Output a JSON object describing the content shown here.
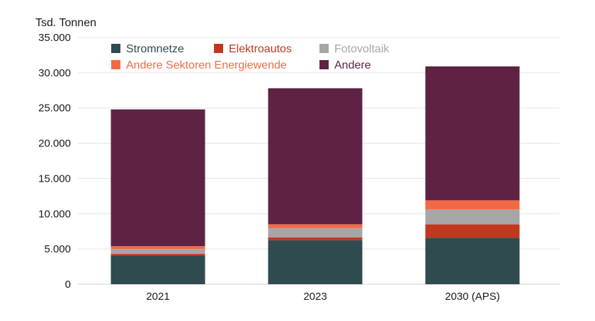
{
  "chart_data": {
    "type": "bar",
    "stacked": true,
    "ylabel": "Tsd. Tonnen",
    "xlabel": "",
    "categories": [
      "2021",
      "2023",
      "2030 (APS)"
    ],
    "ylim": [
      0,
      35000
    ],
    "yticks": [
      0,
      5000,
      10000,
      15000,
      20000,
      25000,
      30000,
      35000
    ],
    "ytick_labels": [
      "0",
      "5.000",
      "10.000",
      "15.000",
      "20.000",
      "25.000",
      "30.000",
      "35.000"
    ],
    "grid": true,
    "legend_position": "top-left",
    "series": [
      {
        "name": "Stromnetze",
        "color": "#2f4b50",
        "values": [
          4100,
          6250,
          6600
        ]
      },
      {
        "name": "Elektroautos",
        "color": "#c0381e",
        "values": [
          200,
          400,
          1900
        ]
      },
      {
        "name": "Fotovoltaik",
        "color": "#a6a6a6",
        "values": [
          700,
          1300,
          2100
        ]
      },
      {
        "name": "Andere Sektoren Energiewende",
        "color": "#f26a45",
        "values": [
          400,
          550,
          1300
        ]
      },
      {
        "name": "Andere",
        "color": "#5e2343",
        "values": [
          19400,
          19300,
          19000
        ]
      }
    ]
  }
}
